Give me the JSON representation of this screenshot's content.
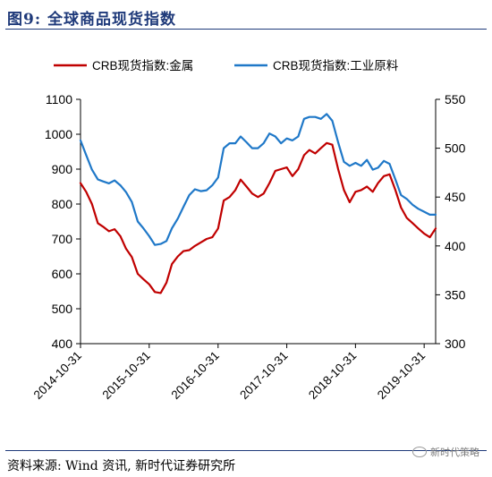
{
  "title": "图9:  全球商品现货指数",
  "source": "资料来源: Wind 资讯, 新时代证券研究所",
  "watermark": "新时代策略",
  "colors": {
    "metals": "#c00000",
    "industrial": "#1f78c8",
    "axis": "#000000"
  },
  "chart_data": {
    "type": "line",
    "legend_placement": "top",
    "grid": false,
    "x_range": [
      "2014-10-31",
      "2019-12-31"
    ],
    "x_ticks": [
      "2014-10-31",
      "2015-10-31",
      "2016-10-31",
      "2017-10-31",
      "2018-10-31",
      "2019-10-31"
    ],
    "y_left": {
      "ticks": [
        400,
        500,
        600,
        700,
        800,
        900,
        1000,
        1100
      ],
      "range": [
        400,
        1100
      ]
    },
    "y_right": {
      "ticks": [
        300,
        350,
        400,
        450,
        500,
        550
      ],
      "range": [
        300,
        550
      ]
    },
    "series": [
      {
        "name": "CRB现货指数:金属",
        "axis": "left",
        "color": "#c00000",
        "points": [
          [
            "2014-10-31",
            860
          ],
          [
            "2014-11-30",
            835
          ],
          [
            "2014-12-31",
            800
          ],
          [
            "2015-01-31",
            745
          ],
          [
            "2015-02-28",
            735
          ],
          [
            "2015-03-31",
            722
          ],
          [
            "2015-04-30",
            728
          ],
          [
            "2015-05-31",
            708
          ],
          [
            "2015-06-30",
            672
          ],
          [
            "2015-07-31",
            648
          ],
          [
            "2015-08-31",
            600
          ],
          [
            "2015-09-30",
            585
          ],
          [
            "2015-10-31",
            570
          ],
          [
            "2015-11-30",
            548
          ],
          [
            "2015-12-31",
            545
          ],
          [
            "2016-01-31",
            575
          ],
          [
            "2016-02-29",
            628
          ],
          [
            "2016-03-31",
            650
          ],
          [
            "2016-04-30",
            665
          ],
          [
            "2016-05-31",
            668
          ],
          [
            "2016-06-30",
            680
          ],
          [
            "2016-07-31",
            690
          ],
          [
            "2016-08-31",
            700
          ],
          [
            "2016-09-30",
            705
          ],
          [
            "2016-10-31",
            730
          ],
          [
            "2016-11-30",
            810
          ],
          [
            "2016-12-31",
            820
          ],
          [
            "2017-01-31",
            840
          ],
          [
            "2017-02-28",
            870
          ],
          [
            "2017-03-31",
            850
          ],
          [
            "2017-04-30",
            830
          ],
          [
            "2017-05-31",
            820
          ],
          [
            "2017-06-30",
            830
          ],
          [
            "2017-07-31",
            860
          ],
          [
            "2017-08-31",
            895
          ],
          [
            "2017-09-30",
            900
          ],
          [
            "2017-10-31",
            905
          ],
          [
            "2017-11-30",
            880
          ],
          [
            "2017-12-31",
            900
          ],
          [
            "2018-01-31",
            940
          ],
          [
            "2018-02-28",
            955
          ],
          [
            "2018-03-31",
            945
          ],
          [
            "2018-04-30",
            960
          ],
          [
            "2018-05-31",
            975
          ],
          [
            "2018-06-30",
            970
          ],
          [
            "2018-07-31",
            900
          ],
          [
            "2018-08-31",
            840
          ],
          [
            "2018-09-30",
            805
          ],
          [
            "2018-10-31",
            835
          ],
          [
            "2018-11-30",
            840
          ],
          [
            "2018-12-31",
            850
          ],
          [
            "2019-01-31",
            835
          ],
          [
            "2019-02-28",
            860
          ],
          [
            "2019-03-31",
            880
          ],
          [
            "2019-04-30",
            885
          ],
          [
            "2019-05-31",
            840
          ],
          [
            "2019-06-30",
            790
          ],
          [
            "2019-07-31",
            760
          ],
          [
            "2019-08-31",
            745
          ],
          [
            "2019-09-30",
            730
          ],
          [
            "2019-10-31",
            715
          ],
          [
            "2019-11-30",
            705
          ],
          [
            "2019-12-31",
            730
          ]
        ]
      },
      {
        "name": "CRB现货指数:工业原料",
        "axis": "right",
        "color": "#1f78c8",
        "points": [
          [
            "2014-10-31",
            508
          ],
          [
            "2014-11-30",
            493
          ],
          [
            "2014-12-31",
            478
          ],
          [
            "2015-01-31",
            468
          ],
          [
            "2015-02-28",
            466
          ],
          [
            "2015-03-31",
            464
          ],
          [
            "2015-04-30",
            467
          ],
          [
            "2015-05-31",
            462
          ],
          [
            "2015-06-30",
            455
          ],
          [
            "2015-07-31",
            445
          ],
          [
            "2015-08-31",
            425
          ],
          [
            "2015-09-30",
            418
          ],
          [
            "2015-10-31",
            410
          ],
          [
            "2015-11-30",
            401
          ],
          [
            "2015-12-31",
            402
          ],
          [
            "2016-01-31",
            405
          ],
          [
            "2016-02-29",
            418
          ],
          [
            "2016-03-31",
            428
          ],
          [
            "2016-04-30",
            440
          ],
          [
            "2016-05-31",
            452
          ],
          [
            "2016-06-30",
            458
          ],
          [
            "2016-07-31",
            456
          ],
          [
            "2016-08-31",
            457
          ],
          [
            "2016-09-30",
            462
          ],
          [
            "2016-10-31",
            470
          ],
          [
            "2016-11-30",
            500
          ],
          [
            "2016-12-31",
            505
          ],
          [
            "2017-01-31",
            505
          ],
          [
            "2017-02-28",
            512
          ],
          [
            "2017-03-31",
            506
          ],
          [
            "2017-04-30",
            500
          ],
          [
            "2017-05-31",
            500
          ],
          [
            "2017-06-30",
            505
          ],
          [
            "2017-07-31",
            515
          ],
          [
            "2017-08-31",
            512
          ],
          [
            "2017-09-30",
            505
          ],
          [
            "2017-10-31",
            510
          ],
          [
            "2017-11-30",
            508
          ],
          [
            "2017-12-31",
            512
          ],
          [
            "2018-01-31",
            530
          ],
          [
            "2018-02-28",
            532
          ],
          [
            "2018-03-31",
            532
          ],
          [
            "2018-04-30",
            530
          ],
          [
            "2018-05-31",
            535
          ],
          [
            "2018-06-30",
            528
          ],
          [
            "2018-07-31",
            506
          ],
          [
            "2018-08-31",
            486
          ],
          [
            "2018-09-30",
            482
          ],
          [
            "2018-10-31",
            485
          ],
          [
            "2018-11-30",
            482
          ],
          [
            "2018-12-31",
            488
          ],
          [
            "2019-01-31",
            478
          ],
          [
            "2019-02-28",
            480
          ],
          [
            "2019-03-31",
            487
          ],
          [
            "2019-04-30",
            484
          ],
          [
            "2019-05-31",
            468
          ],
          [
            "2019-06-30",
            452
          ],
          [
            "2019-07-31",
            448
          ],
          [
            "2019-08-31",
            442
          ],
          [
            "2019-09-30",
            438
          ],
          [
            "2019-10-31",
            435
          ],
          [
            "2019-11-30",
            432
          ],
          [
            "2019-12-31",
            432
          ]
        ]
      }
    ]
  }
}
